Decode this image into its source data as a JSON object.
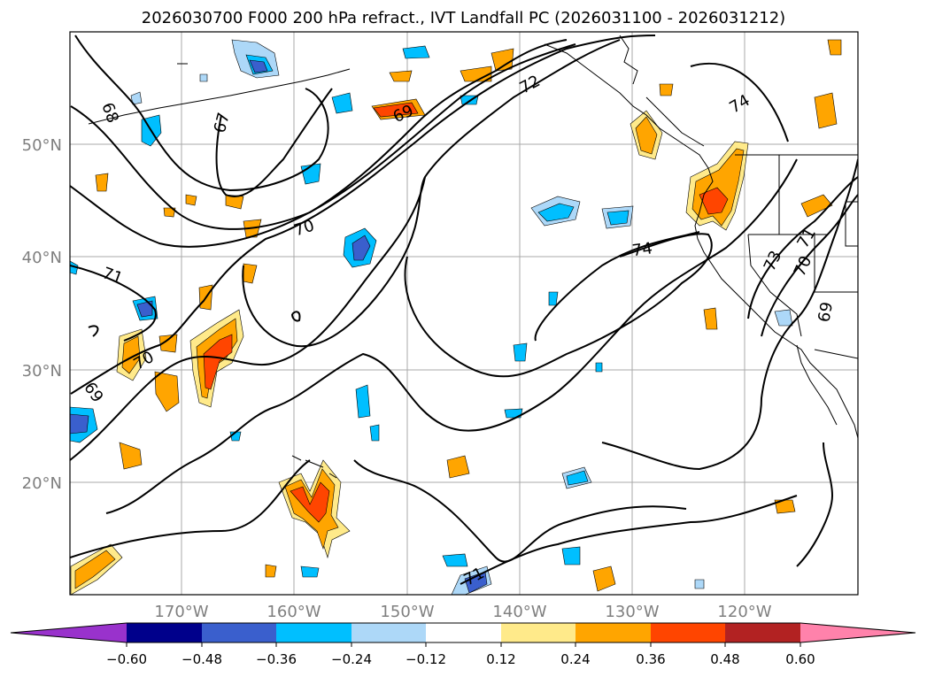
{
  "title": "2026030700 F000 200 hPa refract., IVT Landfall PC (2026031100 - 2026031212)",
  "map": {
    "lat_labels": [
      "50°N",
      "40°N",
      "30°N",
      "20°N"
    ],
    "lon_labels": [
      "170°W",
      "160°W",
      "150°W",
      "140°W",
      "130°W",
      "120°W"
    ]
  },
  "contour_labels": [
    "68",
    "67",
    "69",
    "72",
    "74",
    "70",
    "71",
    "70",
    "69",
    "74",
    "73",
    "70",
    "71",
    "69",
    "71"
  ],
  "colorbar": {
    "ticks": [
      "−0.60",
      "−0.48",
      "−0.36",
      "−0.24",
      "−0.12",
      "0.12",
      "0.24",
      "0.36",
      "0.48",
      "0.60"
    ],
    "colors": {
      "lt_neg060": "#9932cc",
      "neg060_neg048": "#00008b",
      "neg048_neg036": "#3a5fcd",
      "neg036_neg024": "#00bfff",
      "neg024_neg012": "#add8f8",
      "neg012_012": "#ffffff",
      "pos012_024": "#ffea8a",
      "pos024_036": "#ffa500",
      "pos036_048": "#ff4500",
      "pos048_060": "#b22222",
      "gt_060": "#ff82ab"
    }
  }
}
